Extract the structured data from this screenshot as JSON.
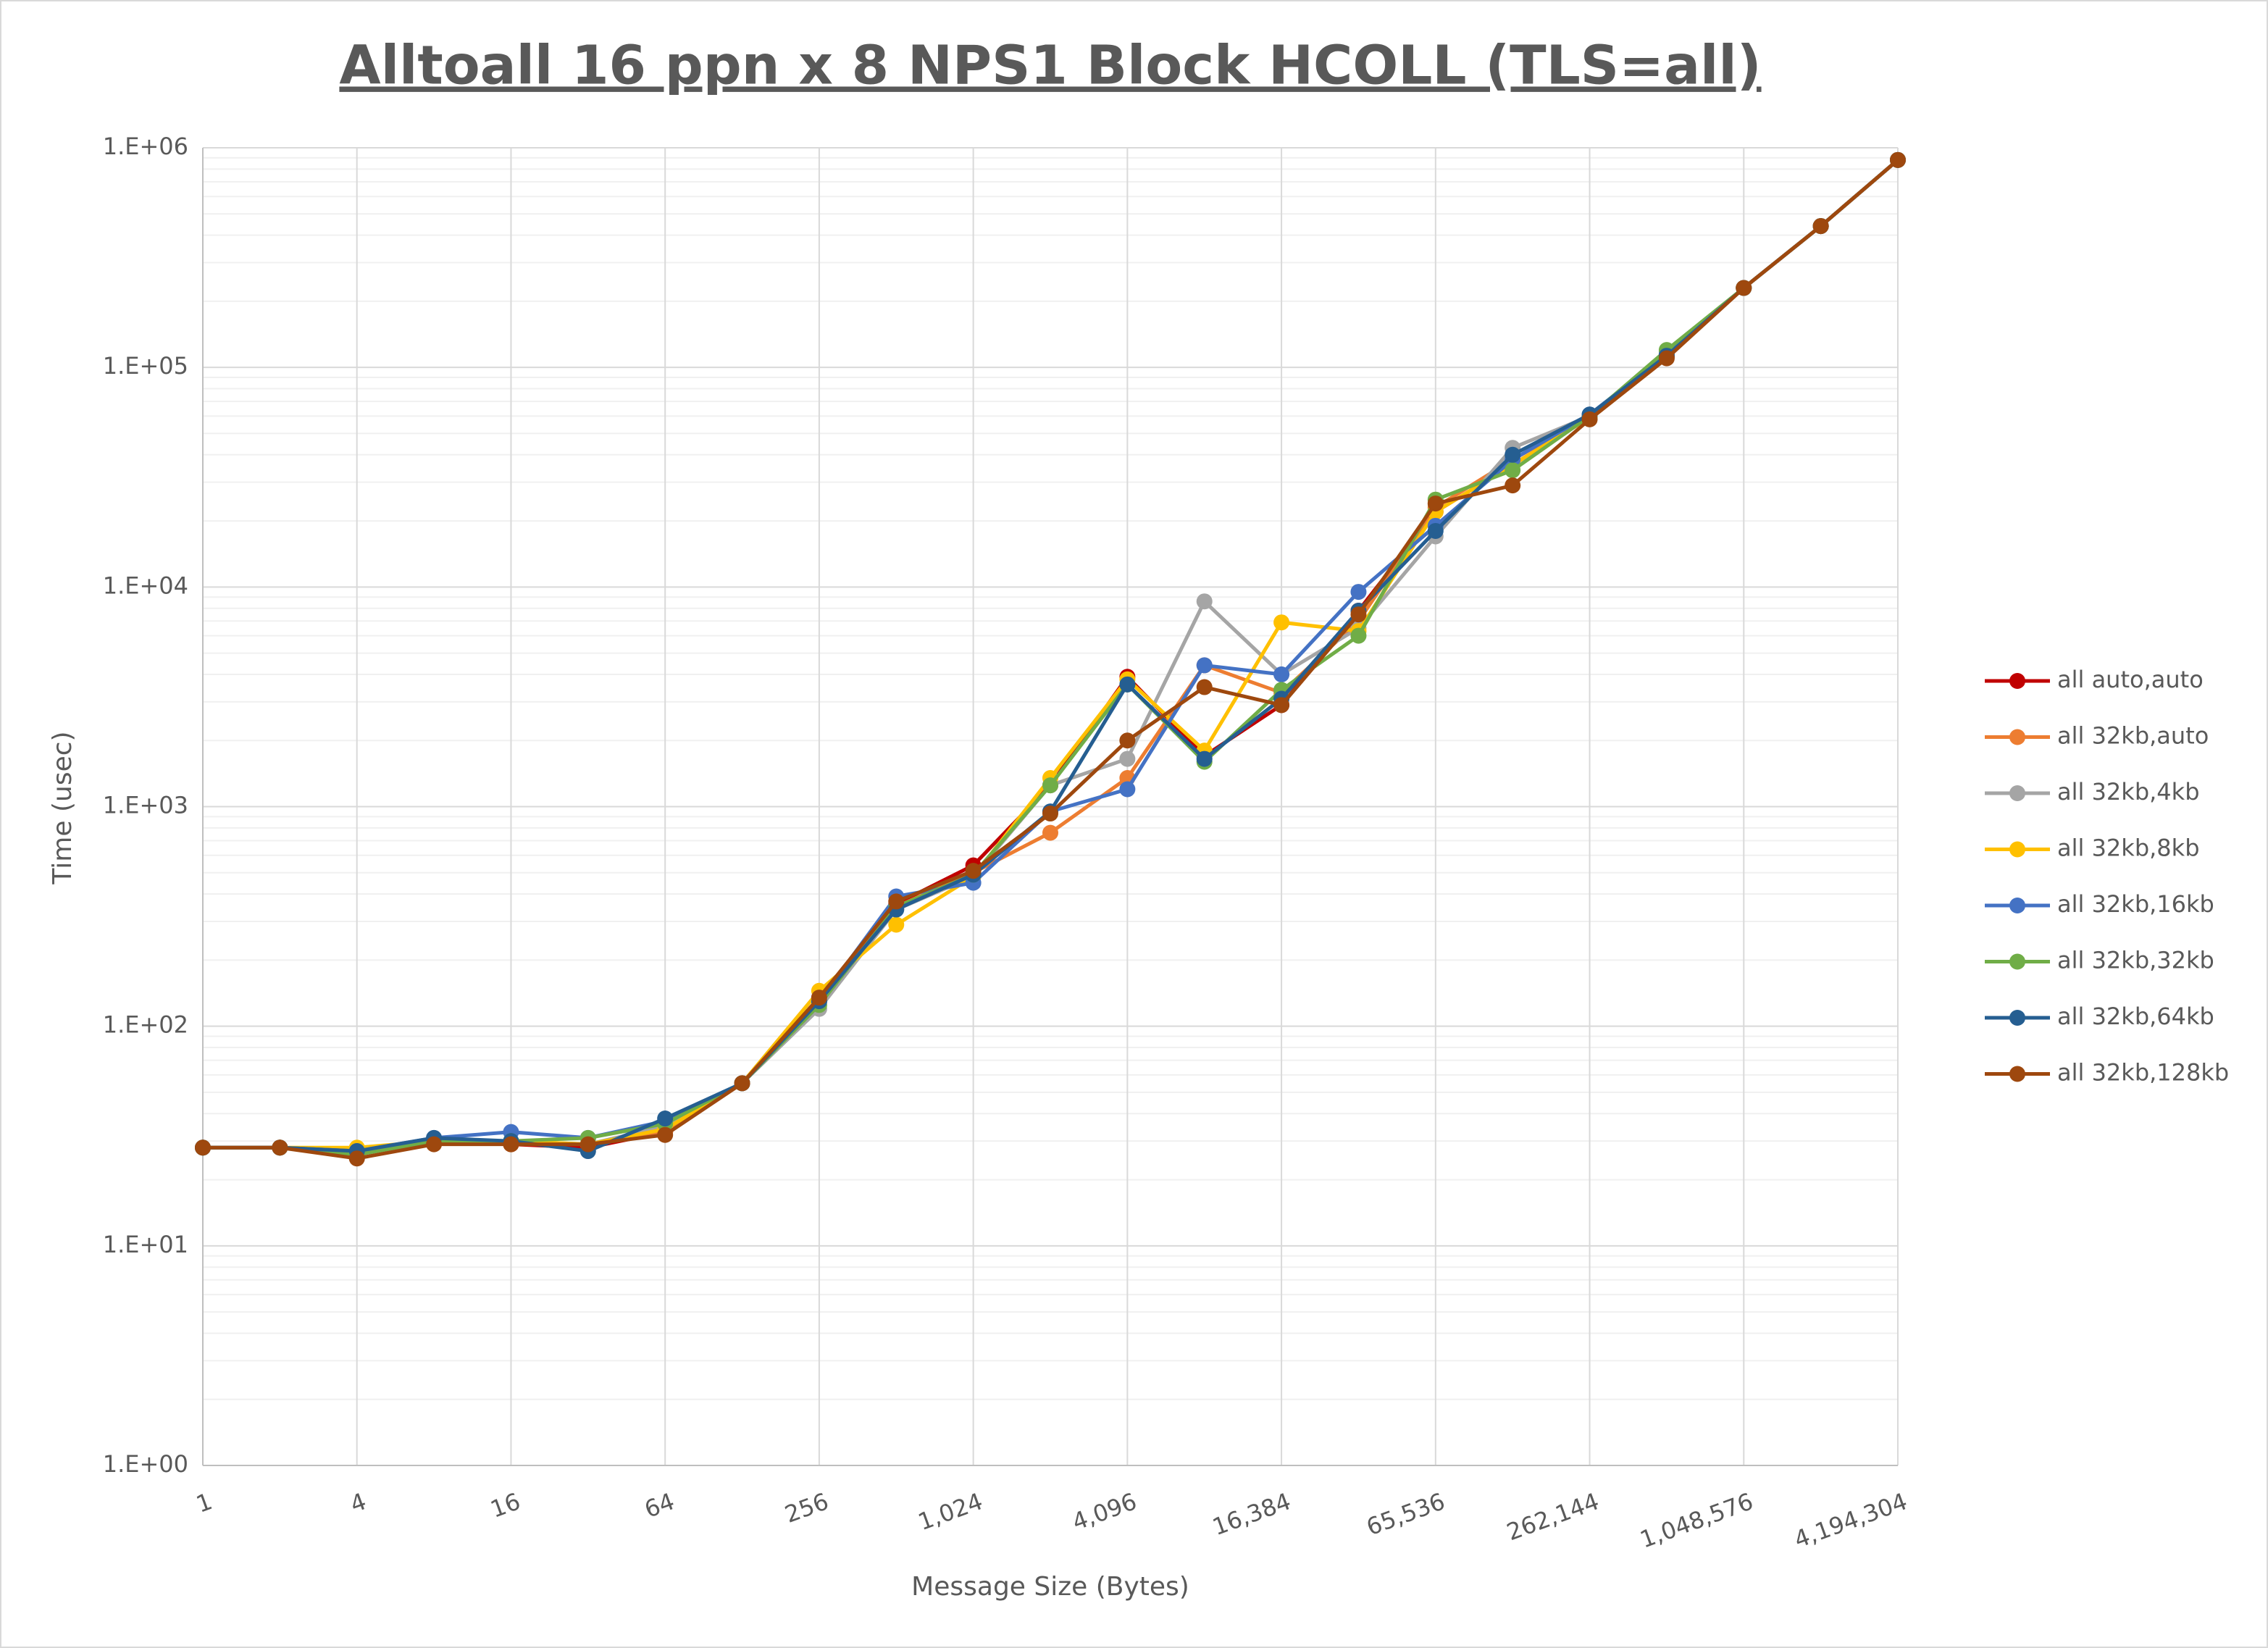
{
  "chart_data": {
    "type": "line",
    "title": "Alltoall 16 ppn x 8 NPS1 Block HCOLL (TLS=all)",
    "x_label": "Message Size (Bytes)",
    "y_label": "Time (usec)",
    "x_scale": "log",
    "y_scale": "log",
    "grid": true,
    "legend": "right",
    "x": [
      1,
      2,
      4,
      8,
      16,
      32,
      64,
      128,
      256,
      512,
      1024,
      2048,
      4096,
      8192,
      16384,
      32768,
      65536,
      131072,
      262144,
      524288,
      1048576,
      2097152,
      4194304
    ],
    "xlim": [
      1,
      4194304
    ],
    "xticks": [
      1,
      4,
      16,
      64,
      256,
      {
        "value": 1024,
        "label": "1,024"
      },
      {
        "value": 4096,
        "label": "4,096"
      },
      {
        "value": 16384,
        "label": "16,384"
      },
      {
        "value": 65536,
        "label": "65,536"
      },
      {
        "value": 262144,
        "label": "262,144"
      },
      {
        "value": 1048576,
        "label": "1,048,576"
      },
      {
        "value": 4194304,
        "label": "4,194,304"
      }
    ],
    "ylim": [
      1,
      1000000
    ],
    "yticks": [
      {
        "value": 1,
        "label": "1.E+00"
      },
      {
        "value": 10,
        "label": "1.E+01"
      },
      {
        "value": 100,
        "label": "1.E+02"
      },
      {
        "value": 1000,
        "label": "1.E+03"
      },
      {
        "value": 10000,
        "label": "1.E+04"
      },
      {
        "value": 100000,
        "label": "1.E+05"
      },
      {
        "value": 1000000,
        "label": "1.E+06"
      }
    ],
    "series": [
      {
        "name": "all auto,auto",
        "color": "#c00000",
        "values": [
          28,
          28,
          27,
          30,
          29,
          28,
          33,
          55,
          135,
          360,
          540,
          1250,
          3900,
          1700,
          2900,
          7800,
          22000,
          36000,
          59000,
          112000,
          230000,
          440000,
          880000
        ]
      },
      {
        "name": "all 32kb,auto",
        "color": "#ed7d31",
        "values": [
          28,
          28,
          27,
          30,
          29,
          29,
          33,
          55,
          130,
          350,
          500,
          760,
          1350,
          4400,
          3300,
          7000,
          23000,
          38000,
          60000,
          115000,
          230000,
          440000,
          880000
        ]
      },
      {
        "name": "all 32kb,4kb",
        "color": "#a5a5a5",
        "values": [
          28,
          28,
          27,
          30,
          30,
          29,
          35,
          55,
          120,
          340,
          480,
          1250,
          1650,
          8600,
          4000,
          6500,
          17000,
          43000,
          60000,
          118000,
          230000,
          440000,
          880000
        ]
      },
      {
        "name": "all 32kb,8kb",
        "color": "#ffc000",
        "values": [
          28,
          28,
          28,
          30,
          30,
          29,
          34,
          55,
          145,
          290,
          480,
          1350,
          3800,
          1800,
          6900,
          6300,
          22000,
          36000,
          59000,
          115000,
          230000,
          440000,
          880000
        ]
      },
      {
        "name": "all 32kb,16kb",
        "color": "#4472c4",
        "values": [
          28,
          28,
          27,
          31,
          33,
          31,
          37,
          55,
          130,
          390,
          450,
          950,
          1200,
          4400,
          4000,
          9500,
          19000,
          38000,
          61000,
          115000,
          230000,
          440000,
          880000
        ]
      },
      {
        "name": "all 32kb,32kb",
        "color": "#70ad47",
        "values": [
          28,
          28,
          26,
          30,
          30,
          31,
          36,
          55,
          125,
          350,
          490,
          1250,
          3600,
          1600,
          3400,
          6000,
          25000,
          34000,
          60000,
          120000,
          230000,
          440000,
          880000
        ]
      },
      {
        "name": "all 32kb,64kb",
        "color": "#255e91",
        "values": [
          28,
          28,
          27,
          31,
          30,
          27,
          38,
          55,
          130,
          340,
          490,
          950,
          3600,
          1650,
          3100,
          7800,
          18000,
          40000,
          61000,
          113000,
          230000,
          440000,
          880000
        ]
      },
      {
        "name": "all 32kb,128kb",
        "color": "#9e480e",
        "values": [
          28,
          28,
          25,
          29,
          29,
          29,
          32,
          55,
          135,
          370,
          510,
          930,
          2000,
          3500,
          2900,
          7500,
          24000,
          29000,
          58000,
          110000,
          230000,
          440000,
          880000
        ]
      }
    ]
  }
}
